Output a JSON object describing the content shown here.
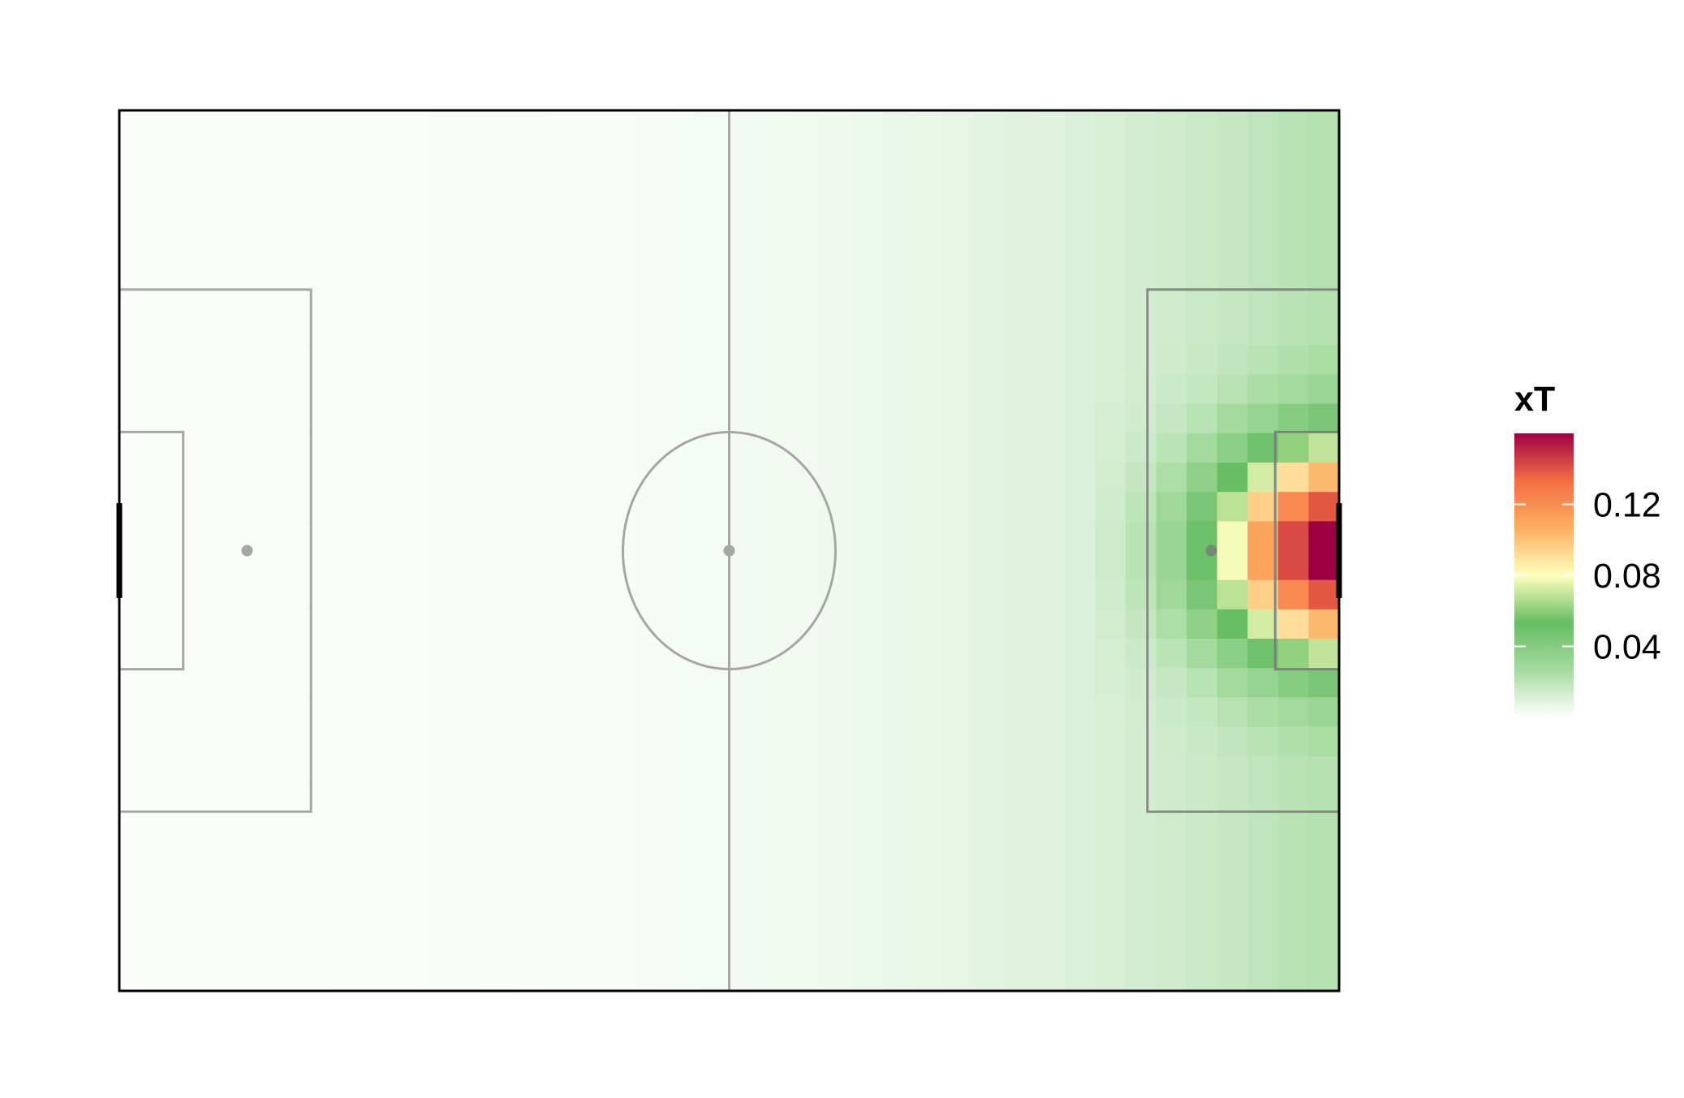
{
  "chart_data": {
    "type": "heatmap",
    "title": "",
    "xlabel": "",
    "ylabel": "",
    "xlim": [
      0,
      105
    ],
    "ylim": [
      0,
      68
    ],
    "grid": false,
    "description_of_background": "football pitch",
    "colorscale": [
      "#ffffff",
      "#a6dba0",
      "#66bd63",
      "#ffffbf",
      "#fdae61",
      "#f46d43",
      "#9e0142"
    ],
    "legend": {
      "title": "xT",
      "position": "right",
      "range": [
        0,
        0.16
      ],
      "ticks": [
        {
          "value": 0.04,
          "label": "0.04"
        },
        {
          "value": 0.08,
          "label": "0.08"
        },
        {
          "value": 0.12,
          "label": "0.12"
        }
      ]
    },
    "grid_cols": 40,
    "grid_rows": 30,
    "colors": {
      "pitch_line": "#a6a6a6",
      "pitch_border": "#000000",
      "goal": "#000000"
    }
  }
}
